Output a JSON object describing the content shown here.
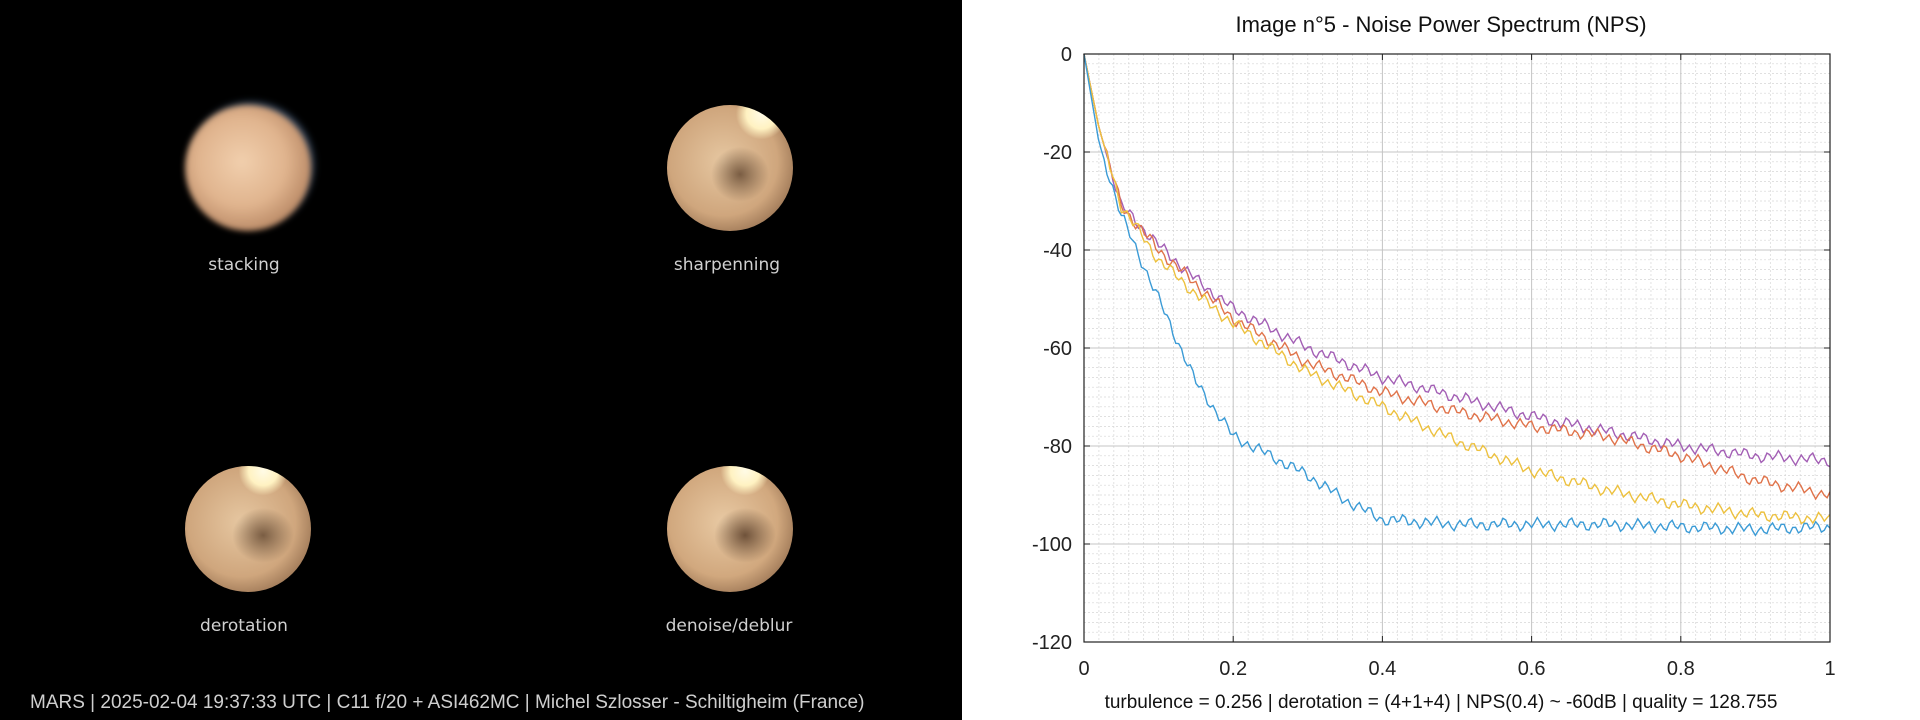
{
  "left_panel": {
    "panels": [
      {
        "label": "stacking",
        "style": "blurred"
      },
      {
        "label": "sharpenning",
        "style": "sharp"
      },
      {
        "label": "derotation",
        "style": "sharp"
      },
      {
        "label": "denoise/deblur",
        "style": "sharp"
      }
    ],
    "caption": "MARS | 2025-02-04  19:37:33 UTC | C11 f/20 + ASI462MC | Michel Szlosser - Schiltigheim (France)"
  },
  "chart": {
    "title": "Image n°5 - Noise Power Spectrum (NPS)",
    "footer": "turbulence = 0.256 | derotation = (4+1+4) | NPS(0.4) ~ -60dB |  quality = 128.755"
  },
  "chart_data": {
    "type": "line",
    "title": "Image n°5 - Noise Power Spectrum (NPS)",
    "xlabel": "",
    "ylabel": "",
    "xlim": [
      0,
      1
    ],
    "ylim": [
      -120,
      0
    ],
    "xticks": [
      "0",
      "0.2",
      "0.4",
      "0.6",
      "0.8",
      "1"
    ],
    "yticks": [
      "0",
      "-20",
      "-40",
      "-60",
      "-80",
      "-100",
      "-120"
    ],
    "grid": true,
    "minor_grid": true,
    "legend": "none",
    "series": [
      {
        "color": "#a35fb5",
        "x": [
          0,
          0.02,
          0.05,
          0.1,
          0.15,
          0.2,
          0.3,
          0.4,
          0.5,
          0.6,
          0.7,
          0.8,
          0.9,
          1.0
        ],
        "y": [
          0,
          -15,
          -31,
          -39,
          -46,
          -52,
          -60,
          -66,
          -70,
          -74,
          -77,
          -80,
          -82,
          -83
        ]
      },
      {
        "color": "#e0734a",
        "x": [
          0,
          0.02,
          0.05,
          0.1,
          0.15,
          0.2,
          0.3,
          0.4,
          0.5,
          0.6,
          0.7,
          0.8,
          0.9,
          1.0
        ],
        "y": [
          0,
          -15,
          -31,
          -40,
          -47,
          -54,
          -63,
          -69,
          -73,
          -76,
          -78,
          -82,
          -87,
          -90
        ]
      },
      {
        "color": "#edc13f",
        "x": [
          0,
          0.02,
          0.05,
          0.1,
          0.15,
          0.2,
          0.3,
          0.4,
          0.5,
          0.6,
          0.7,
          0.8,
          0.9,
          1.0
        ],
        "y": [
          0,
          -15,
          -31,
          -42,
          -49,
          -55,
          -65,
          -72,
          -79,
          -85,
          -89,
          -92,
          -94,
          -95
        ]
      },
      {
        "color": "#3b9bd6",
        "x": [
          0,
          0.02,
          0.05,
          0.1,
          0.15,
          0.2,
          0.25,
          0.3,
          0.35,
          0.4,
          0.5,
          0.6,
          0.7,
          0.8,
          0.9,
          1.0
        ],
        "y": [
          0,
          -18,
          -33,
          -50,
          -67,
          -78,
          -82,
          -86,
          -91,
          -95,
          -96,
          -96,
          -96,
          -96.5,
          -97,
          -96.5
        ]
      }
    ]
  }
}
